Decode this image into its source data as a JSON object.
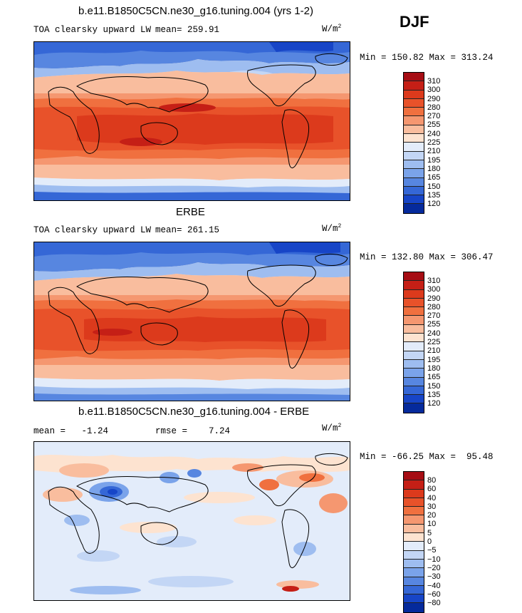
{
  "season": "DJF",
  "panels": [
    {
      "title": "b.e11.B1850C5CN.ne30_g16.tuning.004 (yrs 1-2)",
      "left_label": "TOA clearsky upward LW",
      "mean_text": "mean= 259.91",
      "unit": "W/m",
      "unit_sup": "2",
      "minmax": "Min = 150.82 Max = 313.24",
      "levels": [
        "310",
        "300",
        "290",
        "280",
        "270",
        "255",
        "240",
        "225",
        "210",
        "195",
        "180",
        "165",
        "150",
        "135",
        "120"
      ],
      "colors": [
        "#a60d14",
        "#c51f16",
        "#dc3a1c",
        "#e8522a",
        "#f0703f",
        "#f59770",
        "#f9bd9e",
        "#fde3d0",
        "#e3ecfa",
        "#c3d6f5",
        "#9ebdf0",
        "#7aa3ea",
        "#5786e0",
        "#3567d6",
        "#1745c7",
        "#052a9c"
      ]
    },
    {
      "title": "ERBE",
      "left_label": "TOA clearsky upward LW",
      "mean_text": "mean= 261.15",
      "unit": "W/m",
      "unit_sup": "2",
      "minmax": "Min = 132.80 Max = 306.47",
      "levels": [
        "310",
        "300",
        "290",
        "280",
        "270",
        "255",
        "240",
        "225",
        "210",
        "195",
        "180",
        "165",
        "150",
        "135",
        "120"
      ],
      "colors": [
        "#a60d14",
        "#c51f16",
        "#dc3a1c",
        "#e8522a",
        "#f0703f",
        "#f59770",
        "#f9bd9e",
        "#fde3d0",
        "#e3ecfa",
        "#c3d6f5",
        "#9ebdf0",
        "#7aa3ea",
        "#5786e0",
        "#3567d6",
        "#1745c7",
        "#052a9c"
      ]
    },
    {
      "title": "b.e11.B1850C5CN.ne30_g16.tuning.004 - ERBE",
      "left_label": "mean =   -1.24",
      "mean_text": "rmse =    7.24",
      "unit": "W/m",
      "unit_sup": "2",
      "minmax": "Min = -66.25 Max =  95.48",
      "levels": [
        "80",
        "60",
        "40",
        "30",
        "20",
        "10",
        "5",
        "0",
        "−5",
        "−10",
        "−20",
        "−30",
        "−40",
        "−60",
        "−80"
      ],
      "colors": [
        "#a60d14",
        "#c51f16",
        "#dc3a1c",
        "#e8522a",
        "#f0703f",
        "#f59770",
        "#f9bd9e",
        "#fde3d0",
        "#e3ecfa",
        "#c3d6f5",
        "#9ebdf0",
        "#7aa3ea",
        "#5786e0",
        "#3567d6",
        "#1745c7",
        "#052a9c"
      ]
    }
  ]
}
